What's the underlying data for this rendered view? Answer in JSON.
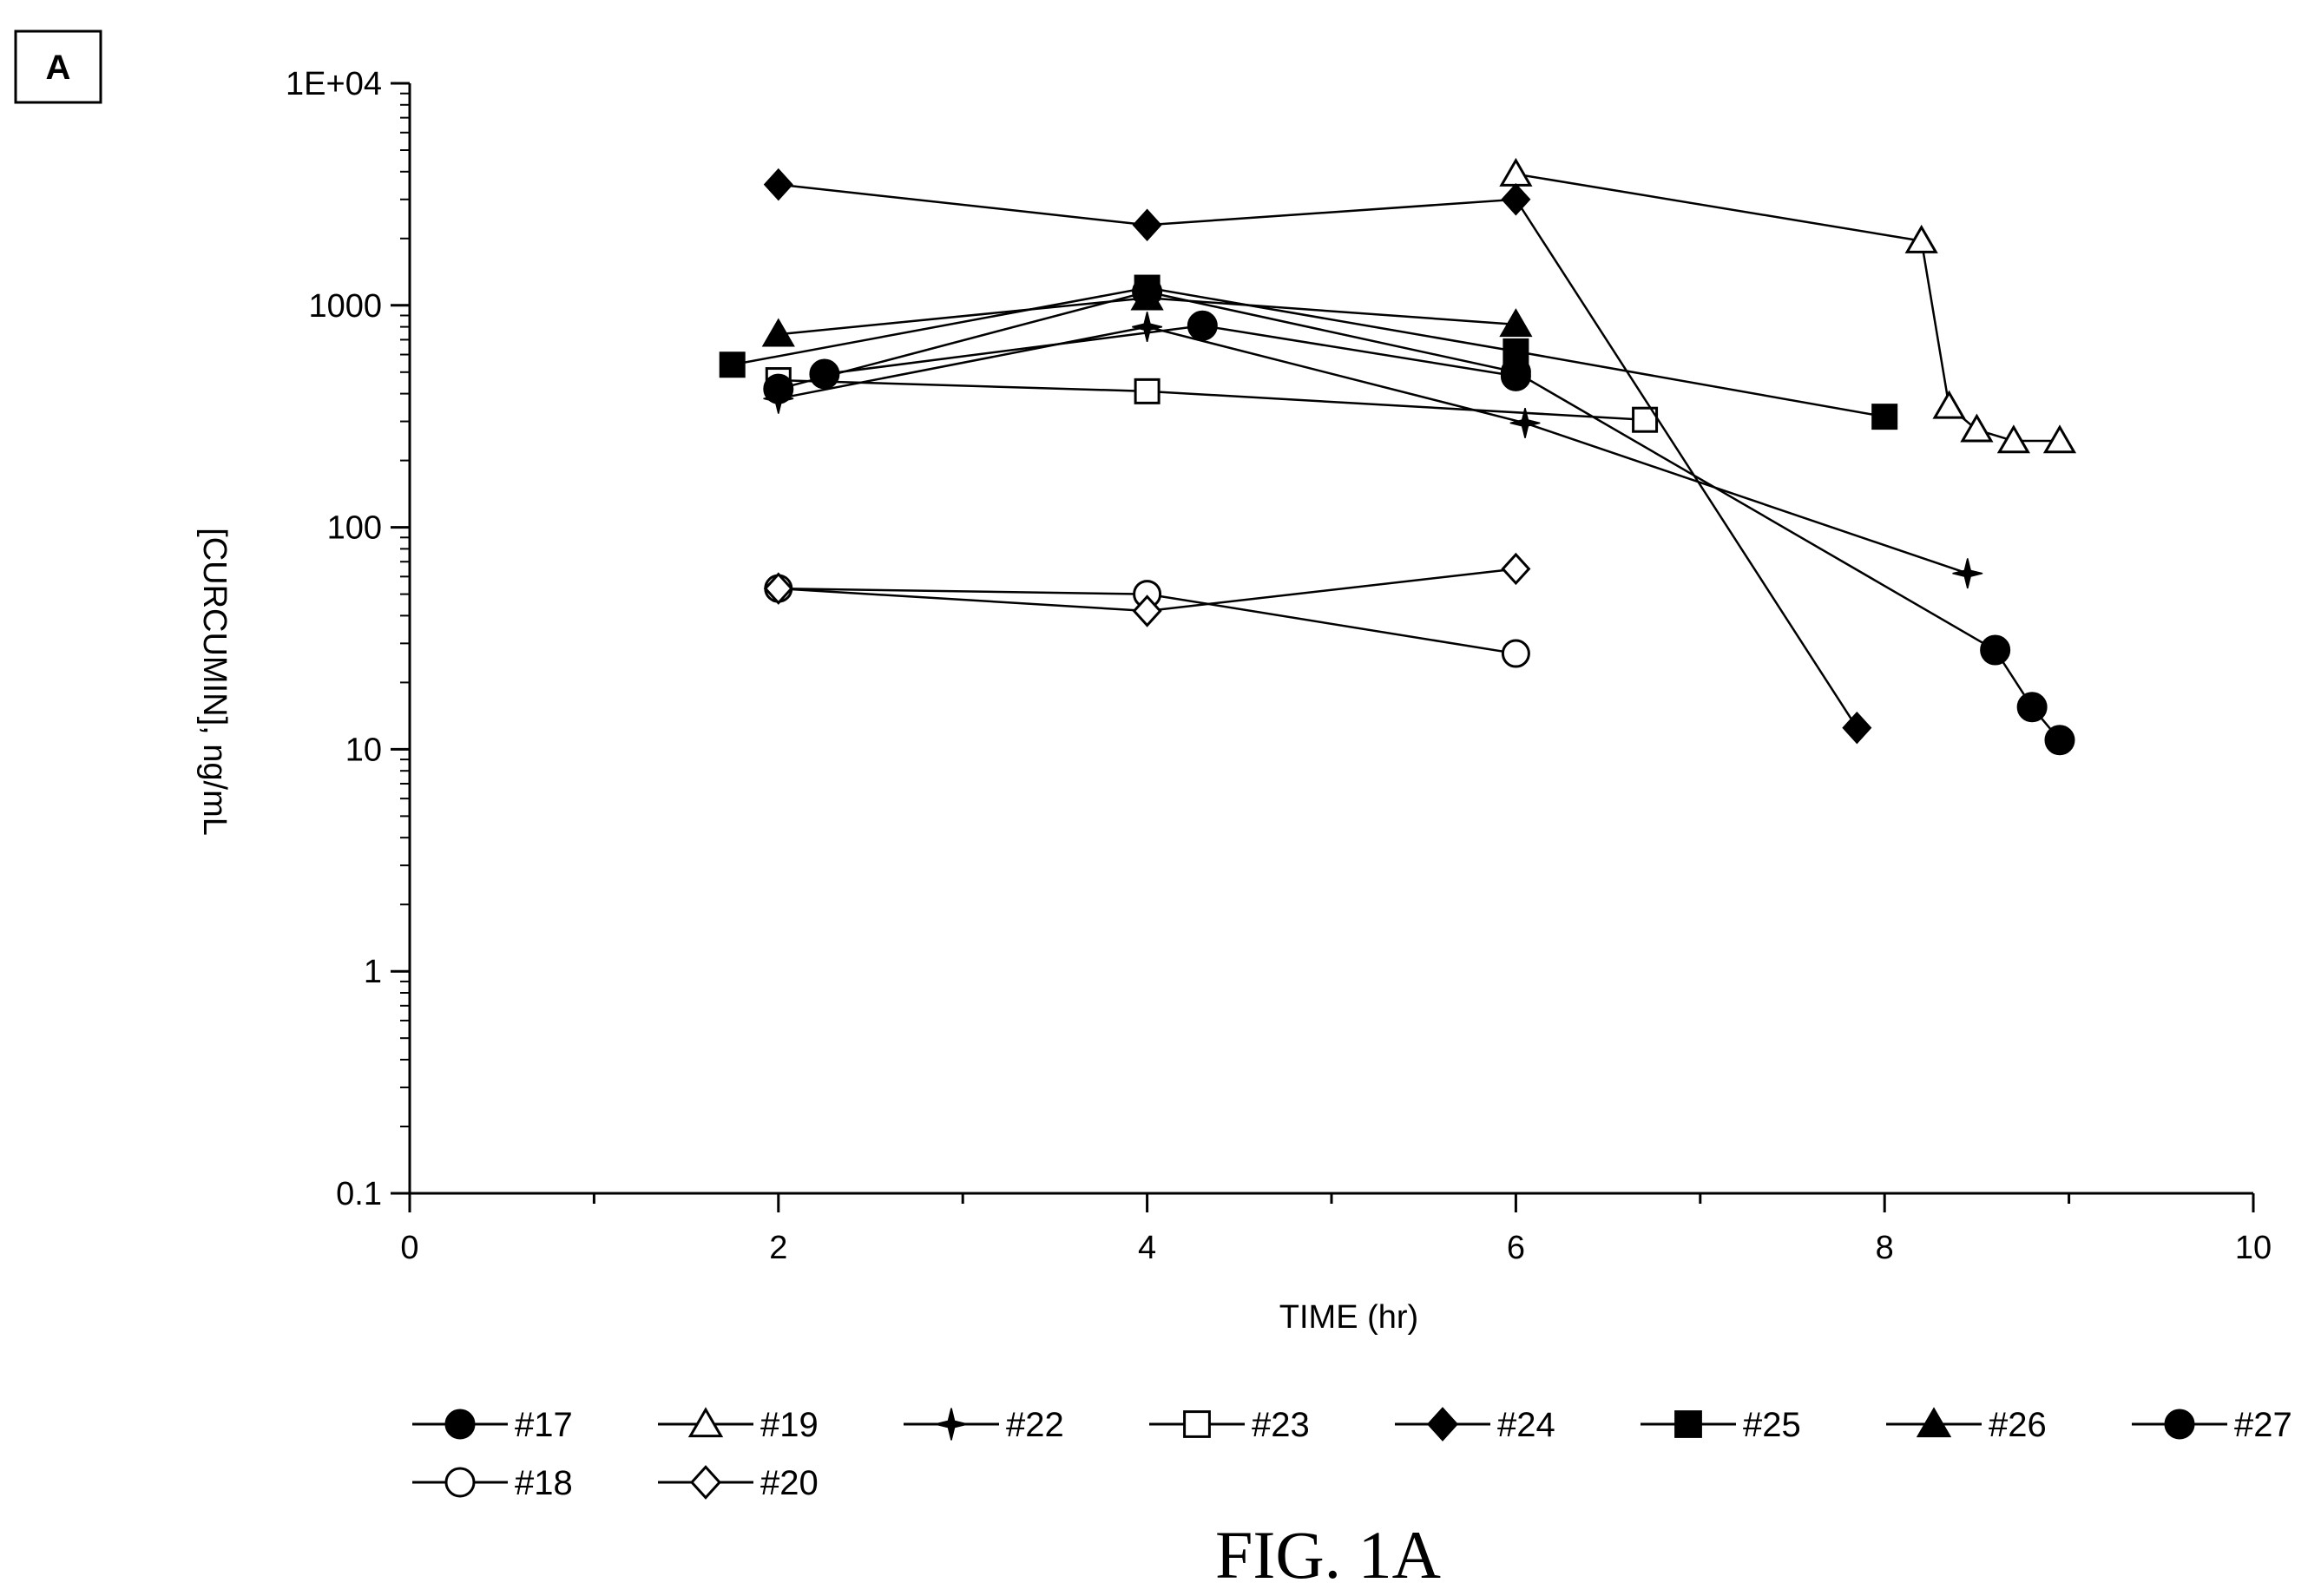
{
  "panel_label": "A",
  "figure_caption": "FIG. 1A",
  "chart_data": {
    "type": "line",
    "y_scale": "log",
    "xlabel": "TIME (hr)",
    "ylabel": "[CURCUMIN], ng/mL",
    "xlim": [
      0,
      10
    ],
    "ylim": [
      0.1,
      10000
    ],
    "x_ticks": [
      {
        "value": 0,
        "label": "0"
      },
      {
        "value": 2,
        "label": "2"
      },
      {
        "value": 4,
        "label": "4"
      },
      {
        "value": 6,
        "label": "6"
      },
      {
        "value": 8,
        "label": "8"
      },
      {
        "value": 10,
        "label": "10"
      }
    ],
    "x_minor_ticks": [
      1,
      3,
      5,
      7,
      9
    ],
    "y_ticks": [
      {
        "value": 0.1,
        "label": "0.1"
      },
      {
        "value": 1,
        "label": "1"
      },
      {
        "value": 10,
        "label": "10"
      },
      {
        "value": 100,
        "label": "100"
      },
      {
        "value": 1000,
        "label": "1000"
      },
      {
        "value": 10000,
        "label": "1E+04"
      }
    ],
    "grid": false,
    "legend_position": "bottom",
    "series": [
      {
        "name": "#17",
        "marker": "filled-circle",
        "x": [
          2.25,
          4.3,
          6.0
        ],
        "y": [
          490,
          810,
          480
        ]
      },
      {
        "name": "#19",
        "marker": "open-triangle",
        "x": [
          6.0,
          8.2,
          8.35,
          8.5,
          8.7,
          8.95
        ],
        "y": [
          3900,
          1950,
          350,
          275,
          245,
          245
        ]
      },
      {
        "name": "#22",
        "marker": "star",
        "x": [
          2.0,
          4.0,
          6.05,
          8.45
        ],
        "y": [
          380,
          800,
          295,
          62
        ]
      },
      {
        "name": "#23",
        "marker": "open-square",
        "x": [
          2.0,
          4.0,
          6.7
        ],
        "y": [
          460,
          410,
          305
        ]
      },
      {
        "name": "#24",
        "marker": "filled-diamond",
        "x": [
          2.0,
          4.0,
          6.0,
          7.85
        ],
        "y": [
          3500,
          2300,
          3000,
          12.5
        ]
      },
      {
        "name": "#25",
        "marker": "filled-square",
        "x": [
          1.75,
          4.0,
          6.0,
          8.0
        ],
        "y": [
          540,
          1200,
          620,
          315
        ]
      },
      {
        "name": "#26",
        "marker": "filled-triangle",
        "x": [
          2.0,
          4.0,
          6.0
        ],
        "y": [
          740,
          1080,
          820
        ]
      },
      {
        "name": "#27",
        "marker": "filled-circle",
        "x": [
          2.0,
          4.0,
          6.0,
          8.6,
          8.8,
          8.95
        ],
        "y": [
          420,
          1150,
          500,
          28,
          15.5,
          11
        ]
      },
      {
        "name": "#18",
        "marker": "open-circle",
        "x": [
          2.0,
          4.0,
          6.0
        ],
        "y": [
          53,
          50,
          27
        ]
      },
      {
        "name": "#20",
        "marker": "open-diamond",
        "x": [
          2.0,
          4.0,
          6.0
        ],
        "y": [
          53,
          42,
          65
        ]
      }
    ]
  }
}
